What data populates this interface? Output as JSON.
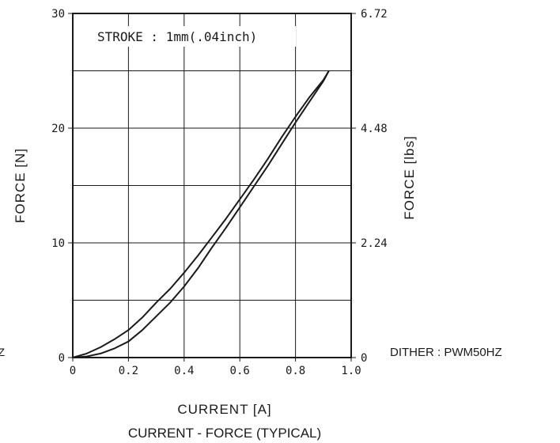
{
  "chart_data": {
    "type": "line",
    "annotation": "STROKE : 1mm(.04inch)",
    "xlabel": "CURRENT [A]",
    "ylabel": "FORCE [N]",
    "y2label": "FORCE [lbs]",
    "title": "CURRENT - FORCE (TYPICAL)",
    "side_note": "DITHER : PWM50HZ",
    "left_edge_fragment": "Z",
    "xlim": [
      0,
      1.0
    ],
    "ylim": [
      0,
      30
    ],
    "y2lim": [
      0,
      6.72
    ],
    "grid": true,
    "x_ticks": [
      "0",
      "0.2",
      "0.4",
      "0.6",
      "0.8",
      "1.0"
    ],
    "y_ticks": [
      "0",
      "10",
      "20",
      "30"
    ],
    "y2_ticks": [
      "0",
      "2.24",
      "4.48",
      "6.72"
    ],
    "series": [
      {
        "x": [
          0.0,
          0.05,
          0.1,
          0.15,
          0.2,
          0.25,
          0.3,
          0.35,
          0.4,
          0.45,
          0.5,
          0.55,
          0.6,
          0.65,
          0.7,
          0.75,
          0.8,
          0.85,
          0.9,
          0.92
        ],
        "y": [
          0.0,
          0.35,
          0.9,
          1.6,
          2.4,
          3.5,
          4.8,
          6.0,
          7.4,
          8.9,
          10.5,
          12.1,
          13.8,
          15.5,
          17.3,
          19.2,
          21.0,
          22.7,
          24.2,
          25.0
        ]
      },
      {
        "x": [
          0.0,
          0.05,
          0.1,
          0.15,
          0.2,
          0.25,
          0.3,
          0.35,
          0.4,
          0.45,
          0.5,
          0.55,
          0.6,
          0.65,
          0.7,
          0.75,
          0.8,
          0.85,
          0.9,
          0.92
        ],
        "y": [
          0.0,
          0.1,
          0.35,
          0.8,
          1.4,
          2.4,
          3.6,
          4.8,
          6.2,
          7.8,
          9.6,
          11.3,
          13.1,
          14.9,
          16.7,
          18.6,
          20.5,
          22.3,
          24.1,
          25.0
        ]
      }
    ]
  }
}
